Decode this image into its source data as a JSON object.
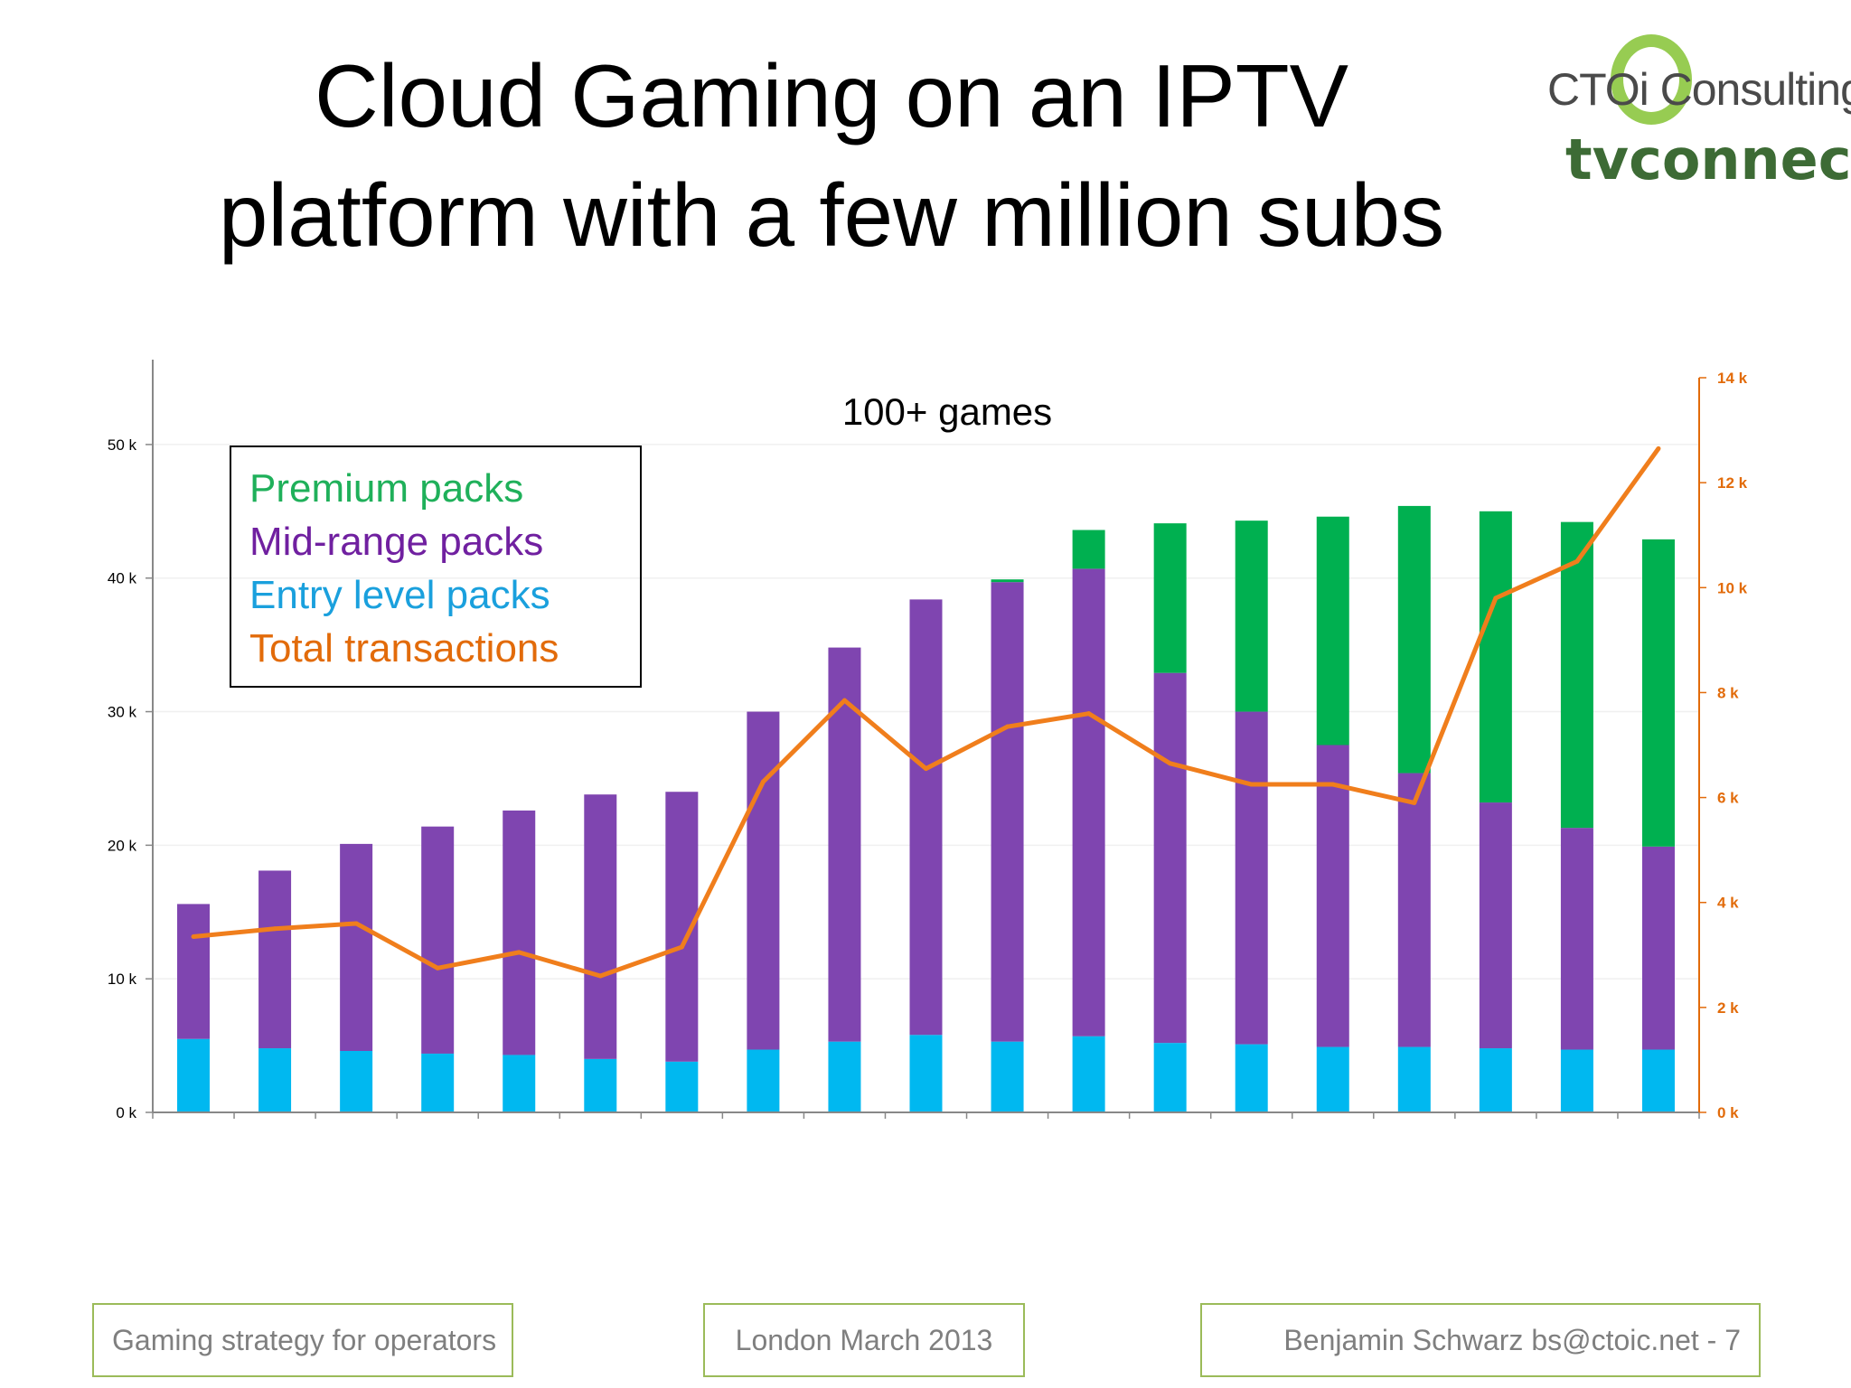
{
  "slide": {
    "title_line1": "Cloud Gaming on an IPTV",
    "title_line2": "platform with a few million subs"
  },
  "logos": {
    "cto_consulting": "CTOi Consulting",
    "tv": "tv",
    "connect": "connect"
  },
  "legend": {
    "premium": "Premium packs",
    "midrange": "Mid-range packs",
    "entry": "Entry level packs",
    "total": "Total transactions"
  },
  "footer": {
    "left": "Gaming strategy for operators",
    "center": "London March 2013",
    "right": "Benjamin Schwarz bs@ctoic.net - 7"
  },
  "colors": {
    "premium": "#00b050",
    "midrange": "#7f45b0",
    "entry": "#00b8f0",
    "total": "#f07e1c",
    "right_axis": "#e26b0a"
  },
  "chart_data": {
    "type": "bar",
    "stacked": true,
    "annotation": "100+ games",
    "y_left": {
      "min": 0,
      "max": 55000,
      "ticks": [
        0,
        10000,
        20000,
        30000,
        40000,
        50000
      ],
      "tick_labels": [
        "0 k",
        "10 k",
        "20 k",
        "30 k",
        "40 k",
        "50 k"
      ]
    },
    "y_right": {
      "min": 0,
      "max": 14000,
      "ticks": [
        0,
        2000,
        4000,
        6000,
        8000,
        10000,
        12000,
        14000
      ],
      "tick_labels": [
        "0 k",
        "2 k",
        "4 k",
        "6 k",
        "8 k",
        "10 k",
        "12 k",
        "14 k"
      ]
    },
    "categories_count": 19,
    "series": [
      {
        "name": "Entry level packs",
        "axis": "left",
        "values": [
          5500,
          4800,
          4600,
          4400,
          4300,
          4000,
          3800,
          4700,
          5300,
          5800,
          5300,
          5700,
          5200,
          5100,
          4900,
          4900,
          4800,
          4700,
          4700
        ]
      },
      {
        "name": "Mid-range packs",
        "axis": "left",
        "values": [
          10100,
          13300,
          15500,
          17000,
          18300,
          19800,
          20200,
          25300,
          29500,
          32600,
          34400,
          35000,
          27700,
          24900,
          22600,
          20500,
          18400,
          16600,
          15200
        ]
      },
      {
        "name": "Premium packs",
        "axis": "left",
        "values": [
          0,
          0,
          0,
          0,
          0,
          0,
          0,
          0,
          0,
          0,
          200,
          2900,
          11200,
          14300,
          17100,
          20000,
          21800,
          22900,
          23000
        ]
      },
      {
        "name": "Total transactions",
        "axis": "right",
        "type": "line",
        "values": [
          3350,
          3500,
          3600,
          2750,
          3050,
          2600,
          3150,
          6300,
          7850,
          6550,
          7350,
          7600,
          6650,
          6250,
          6250,
          5900,
          9800,
          10500,
          12650
        ]
      }
    ]
  }
}
